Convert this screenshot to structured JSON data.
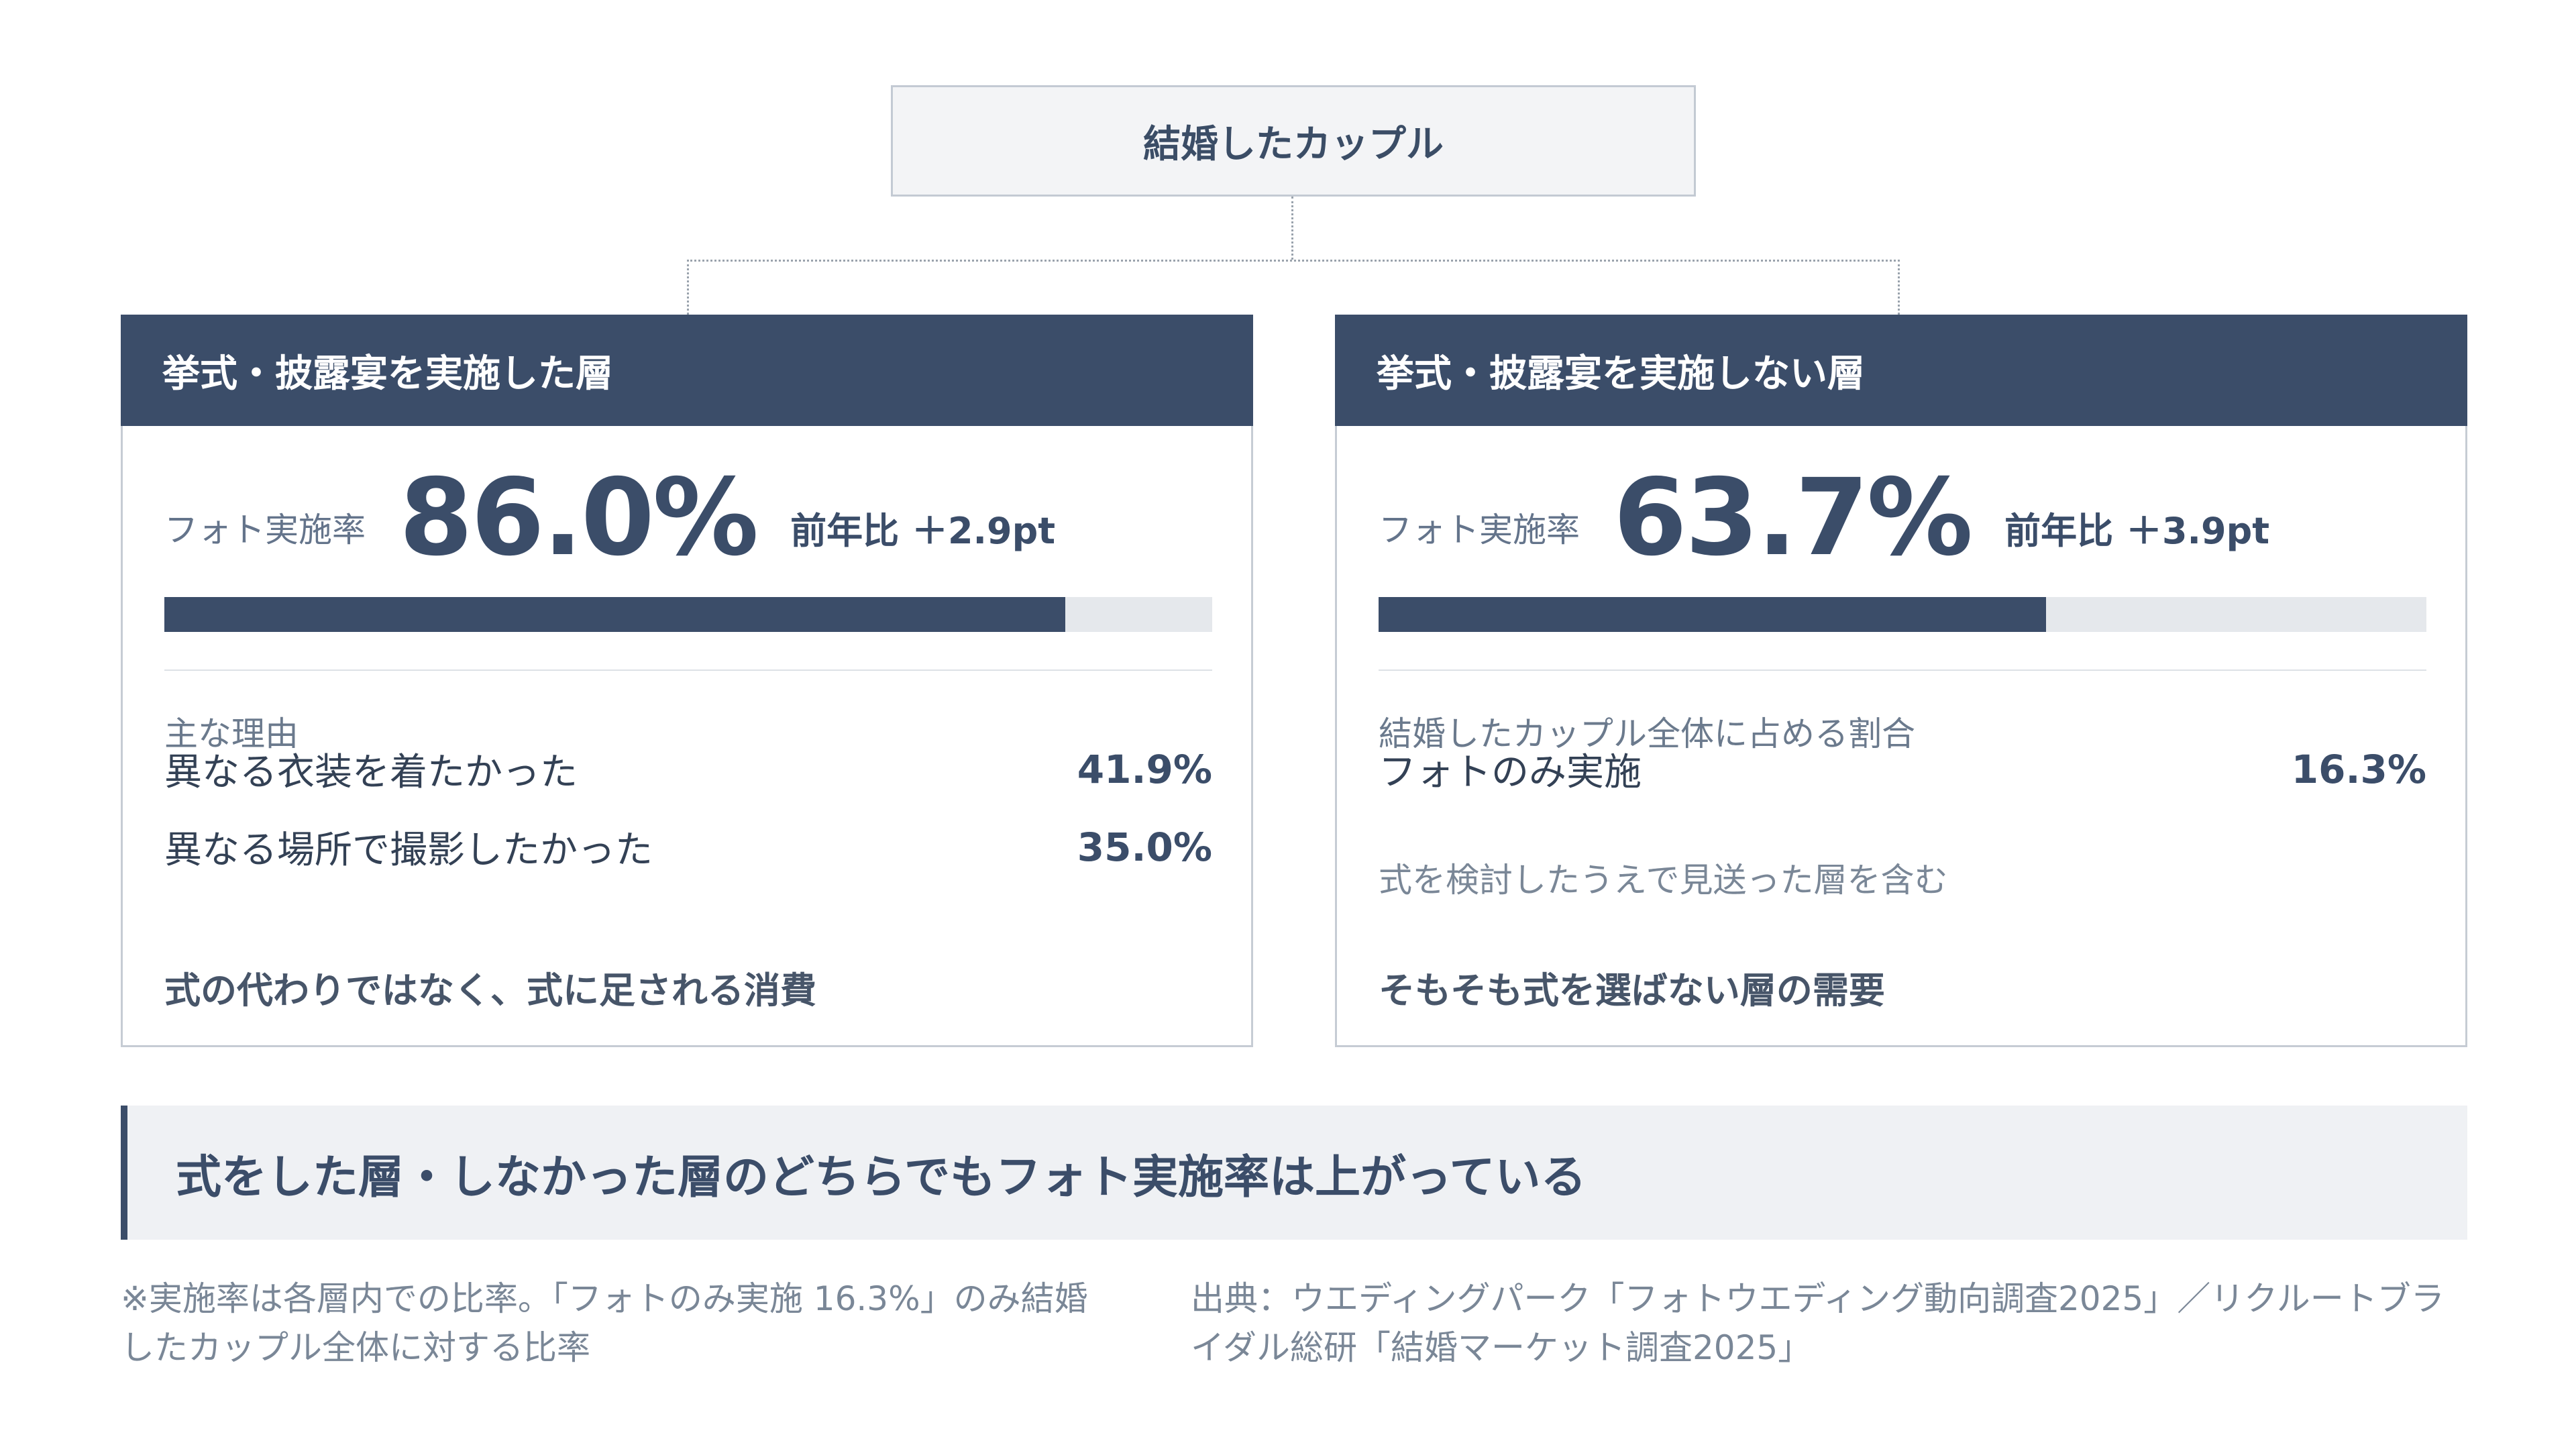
{
  "root": {
    "title": "結婚したカップル"
  },
  "left": {
    "header": "挙式・披露宴を実施した層",
    "stat_label": "フォト実施率",
    "stat_value": "86.0%",
    "stat_delta": "前年比 ＋2.9pt",
    "bar_fraction": 0.86,
    "section_label": "主な理由",
    "items": [
      {
        "label": "異なる衣装を着たかった",
        "value": "41.9%"
      },
      {
        "label": "異なる場所で撮影したかった",
        "value": "35.0%"
      }
    ],
    "summary": "式の代わりではなく、式に足される消費"
  },
  "right": {
    "header": "挙式・披露宴を実施しない層",
    "stat_label": "フォト実施率",
    "stat_value": "63.7%",
    "stat_delta": "前年比 ＋3.9pt",
    "bar_fraction": 0.637,
    "section_label": "結婚したカップル全体に占める割合",
    "items": [
      {
        "label": "フォトのみ実施",
        "value": "16.3%"
      }
    ],
    "note": "式を検討したうえで見送った層を含む",
    "summary": "そもそも式を選ばない層の需要"
  },
  "banner": {
    "text": "式をした層・しなかった層のどちらでもフォト実施率は上がっている"
  },
  "footnotes": {
    "left": "※実施率は各層内での比率。「フォトのみ実施 16.3%」のみ結婚したカップル全体に対する比率",
    "right": "出典：ウエディングパーク「フォトウエディング動向調査2025」／リクルートブライダル総研「結婚マーケット調査2025」"
  },
  "colors": {
    "accent": "#3b4d69",
    "track": "#e5e8ec",
    "banner_bg": "#eff1f4"
  }
}
